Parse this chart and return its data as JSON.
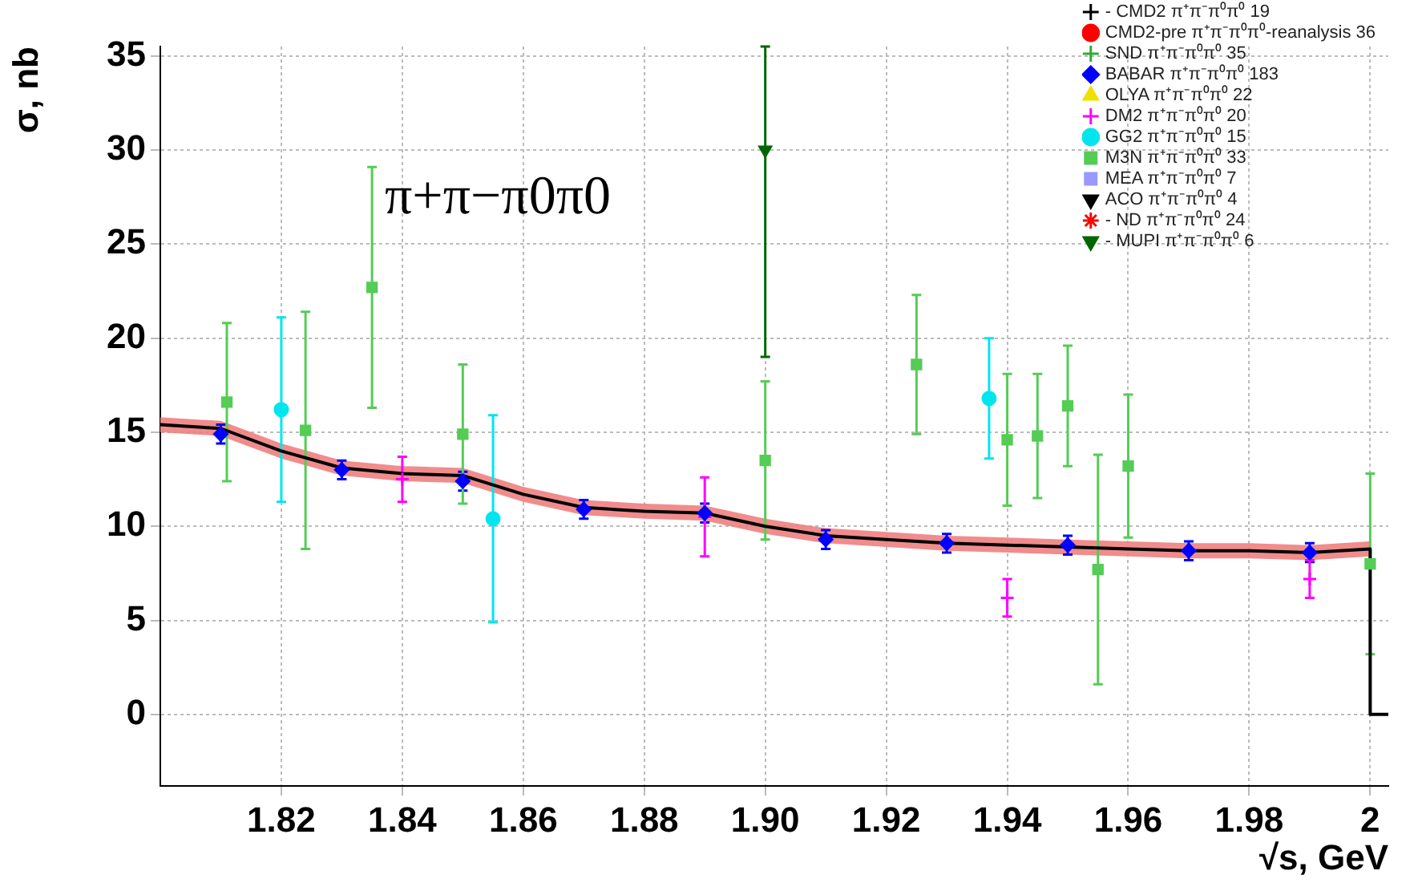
{
  "chart_data": {
    "type": "scatter",
    "xlabel": "√s, GeV",
    "ylabel": "σ, nb",
    "annotations": [
      "π+π−π0π0"
    ],
    "xlim": [
      1.8,
      2.003
    ],
    "ylim": [
      -3.8,
      35.5
    ],
    "xticks": [
      1.82,
      1.84,
      1.86,
      1.88,
      {
        "value": 1.9,
        "label": "1.90"
      },
      1.92,
      1.94,
      1.96,
      1.98,
      {
        "value": 2,
        "label": "2"
      }
    ],
    "yticks": [
      0,
      5,
      10,
      15,
      20,
      25,
      30,
      35
    ],
    "grid": true,
    "legend": "top right",
    "series": [
      {
        "type": "line",
        "color": "#000000",
        "marker": "none",
        "x": [
          1.8,
          1.81,
          1.82,
          1.83,
          1.84,
          1.85,
          1.86,
          1.87,
          1.88,
          1.89,
          1.9,
          1.91,
          1.92,
          1.93,
          1.94,
          1.95,
          1.96,
          1.97,
          1.98,
          1.99,
          2.0,
          2.0,
          2.003
        ],
        "values": [
          15.4,
          15.2,
          14.0,
          13.1,
          12.8,
          12.7,
          11.7,
          11.0,
          10.8,
          10.7,
          10.0,
          9.5,
          9.3,
          9.1,
          9.0,
          8.9,
          8.8,
          8.7,
          8.7,
          8.6,
          8.8,
          0,
          0
        ],
        "lower": [
          15.0,
          14.8,
          13.6,
          12.7,
          12.4,
          12.3,
          11.3,
          10.6,
          10.4,
          10.3,
          9.6,
          9.1,
          8.9,
          8.7,
          8.6,
          8.5,
          8.4,
          8.3,
          8.3,
          8.2,
          8.4,
          null,
          null
        ],
        "upper": [
          15.8,
          15.6,
          14.4,
          13.5,
          13.2,
          13.1,
          12.1,
          11.4,
          11.2,
          11.1,
          10.4,
          9.9,
          9.7,
          9.5,
          9.4,
          9.3,
          9.2,
          9.1,
          9.1,
          9.0,
          9.2,
          null,
          null
        ]
      },
      {
        "name": "- CMD2 π⁺π⁻π⁰π⁰ 19",
        "color": "#000000",
        "marker": "cross"
      },
      {
        "name": "CMD2-pre π⁺π⁻π⁰π⁰-reanalysis 36",
        "color": "#ff0000",
        "marker": "circle"
      },
      {
        "name": "SND π⁺π⁻π⁰π⁰ 35",
        "color": "#33aa33",
        "marker": "cross"
      },
      {
        "name": "BABAR π⁺π⁻π⁰π⁰ 183",
        "color": "#0000ff",
        "marker": "diamond",
        "x": [
          1.81,
          1.83,
          1.85,
          1.87,
          1.89,
          1.91,
          1.93,
          1.95,
          1.97,
          1.99
        ],
        "values": [
          14.9,
          13.0,
          12.4,
          10.9,
          10.7,
          9.3,
          9.1,
          9.0,
          8.7,
          8.6
        ],
        "errors": [
          0.5,
          0.5,
          0.5,
          0.5,
          0.5,
          0.5,
          0.5,
          0.5,
          0.5,
          0.5
        ]
      },
      {
        "name": "OLYA π⁺π⁻π⁰π⁰ 22",
        "color": "#f0e000",
        "marker": "triangle"
      },
      {
        "name": "DM2 π⁺π⁻π⁰π⁰ 20",
        "color": "#ff00ff",
        "marker": "cross",
        "x": [
          1.84,
          1.89,
          1.94,
          1.99
        ],
        "values": [
          12.5,
          10.5,
          6.2,
          7.2
        ],
        "errors": [
          1.2,
          2.1,
          1.0,
          1.0
        ]
      },
      {
        "name": "GG2 π⁺π⁻π⁰π⁰ 15",
        "color": "#00e5ee",
        "marker": "circle",
        "x": [
          1.82,
          1.855,
          1.937
        ],
        "values": [
          16.2,
          10.4,
          16.8
        ],
        "errors": [
          4.9,
          5.5,
          3.2
        ]
      },
      {
        "name": "M3N π⁺π⁻π⁰π⁰ 33",
        "color": "#55cc55",
        "marker": "square",
        "x": [
          1.811,
          1.824,
          1.835,
          1.85,
          1.9,
          1.925,
          1.94,
          1.945,
          1.95,
          1.955,
          1.96,
          2.0
        ],
        "values": [
          16.6,
          15.1,
          22.7,
          14.9,
          13.5,
          18.6,
          14.6,
          14.8,
          16.4,
          7.7,
          13.2,
          8.0
        ],
        "errors": [
          4.2,
          6.3,
          6.4,
          3.7,
          4.2,
          3.7,
          3.5,
          3.3,
          3.2,
          6.1,
          3.8,
          4.8
        ]
      },
      {
        "name": "MEA π⁺π⁻π⁰π⁰ 7",
        "color": "#9999ff",
        "marker": "square"
      },
      {
        "name": "ACO π⁺π⁻π⁰π⁰ 4",
        "color": "#000000",
        "marker": "triangle-down"
      },
      {
        "name": "- ND π⁺π⁻π⁰π⁰ 24",
        "color": "#ff0000",
        "marker": "star"
      },
      {
        "name": "- MUPI π⁺π⁻π⁰π⁰ 6",
        "color": "#006600",
        "marker": "triangle-down",
        "x": [
          1.9
        ],
        "values": [
          30
        ],
        "errors": [
          [
            19,
            35.5
          ]
        ]
      }
    ]
  }
}
